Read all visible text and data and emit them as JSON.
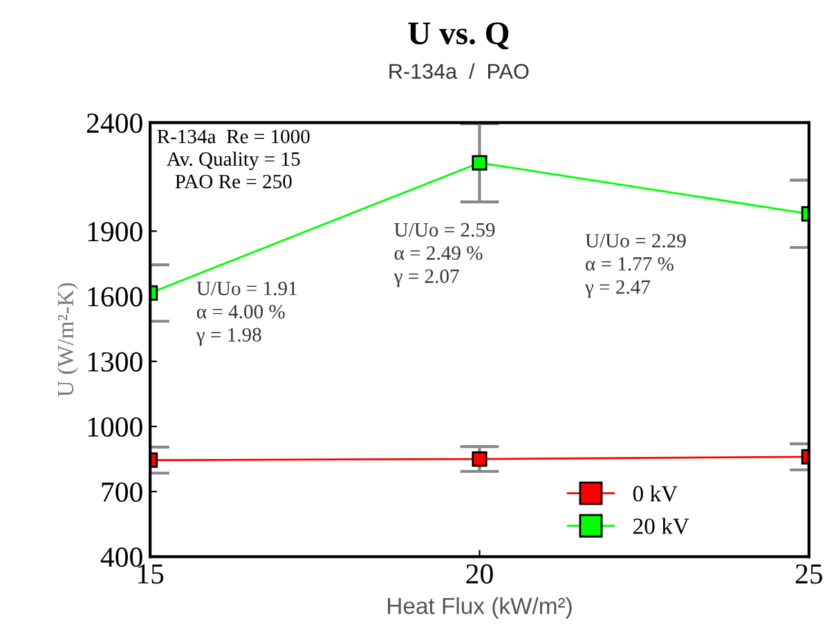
{
  "chart_data": {
    "type": "line",
    "title": "U vs. Q",
    "subtitle": "R-134a  /  PAO",
    "xlabel": "Heat Flux (kW/m²)",
    "ylabel": "U (W/m²-K)",
    "x": [
      15,
      20,
      25
    ],
    "series": [
      {
        "name": "0 kV",
        "color": "#ff0000",
        "values": [
          845,
          850,
          860
        ],
        "errors": [
          60,
          57,
          60
        ]
      },
      {
        "name": "20 kV",
        "color": "#00ff00",
        "values": [
          1615,
          2215,
          1980
        ],
        "errors": [
          130,
          180,
          155
        ]
      }
    ],
    "xlim": [
      15,
      25
    ],
    "xticks": [
      15,
      20,
      25
    ],
    "ylim": [
      400,
      2400
    ],
    "yticks": [
      400,
      700,
      1000,
      1300,
      1600,
      1900,
      2400
    ],
    "marker": "square",
    "grid": false,
    "legend": "bottom right",
    "annotations": [
      "R-134a  Re = 1000\nAv. Quality = 15\nPAO Re = 250",
      "U/Uo = 1.91\nα = 4.00 %\nγ = 1.98",
      "U/Uo = 2.59\nα = 2.49 %\nγ = 2.07",
      "U/Uo = 2.29\nα = 1.77 %\nγ = 2.47"
    ]
  }
}
